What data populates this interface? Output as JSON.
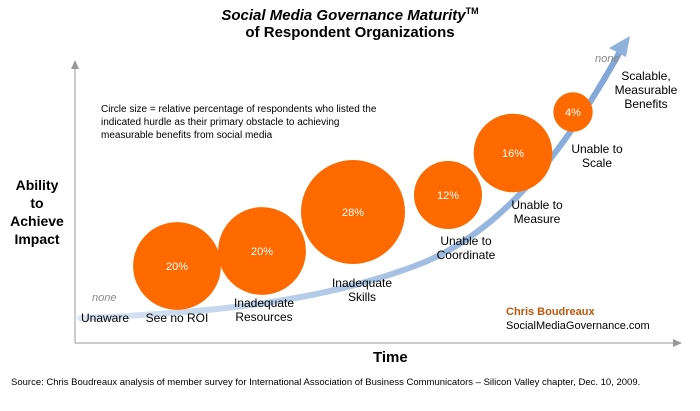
{
  "title": {
    "main": "Social Media Governance Maturity",
    "trademark": "TM",
    "sub": "of Respondent Organizations"
  },
  "note": "Circle size = relative percentage of respondents who listed the indicated hurdle as their primary obstacle to achieving measurable benefits from social media",
  "y_axis_label": [
    "Ability",
    "to",
    "Achieve",
    "Impact"
  ],
  "x_axis_label": "Time",
  "credit": {
    "author": "Chris Boudreaux",
    "site": "SocialMediaGovernance.com"
  },
  "source": "Source:  Chris Boudreaux analysis of member survey for International Association of Business Communicators – Silicon Valley chapter, Dec. 10, 2009.",
  "chart_data": {
    "type": "bubble",
    "categories": [
      "Unaware",
      "See no ROI",
      "Inadequate Resources",
      "Inadequate Skills",
      "Unable to Coordinate",
      "Unable to Measure",
      "Unable to Scale",
      "Scalable, Measurable Benefits"
    ],
    "values": [
      null,
      20,
      20,
      28,
      12,
      16,
      4,
      null
    ],
    "value_labels": [
      "none",
      "20%",
      "20%",
      "28%",
      "12%",
      "16%",
      "4%",
      "none"
    ],
    "unit": "%",
    "colors": {
      "bubble": "#ff6a00",
      "curve": "#8fb2dc",
      "axis": "#999999",
      "highlight": "#ff6a00",
      "none_label": "#888888"
    }
  }
}
